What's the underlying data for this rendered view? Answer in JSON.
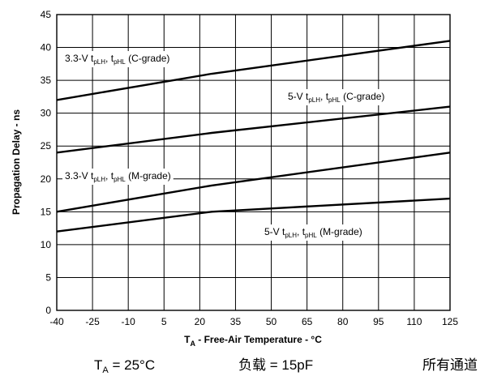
{
  "chart_data": {
    "type": "line",
    "xlabel": "T_A - Free-Air Temperature - °C",
    "xlabel_main": "T",
    "xlabel_sub": "A",
    "xlabel_rest": " - Free-Air Temperature - °C",
    "ylabel": "Propagation Delay - ns",
    "xlim": [
      -40,
      125
    ],
    "ylim": [
      0,
      45
    ],
    "x_ticks": [
      -40,
      -25,
      -10,
      5,
      20,
      35,
      50,
      65,
      80,
      95,
      110,
      125
    ],
    "y_ticks": [
      0,
      5,
      10,
      15,
      20,
      25,
      30,
      35,
      40,
      45
    ],
    "grid": true,
    "series": [
      {
        "name": "3.3-V tpLH, tpHL (C-grade)",
        "label_prefix": "3.3-V t",
        "label_sub1": "pLH",
        "label_mid": ", t",
        "label_sub2": "pHL",
        "label_suffix": " (C-grade)",
        "x": [
          -40,
          25,
          125
        ],
        "y": [
          32,
          36,
          41
        ]
      },
      {
        "name": "5-V tpLH, tpHL (C-grade)",
        "label_prefix": "5-V t",
        "label_sub1": "pLH",
        "label_mid": ", t",
        "label_sub2": "pHL",
        "label_suffix": " (C-grade)",
        "x": [
          -40,
          25,
          125
        ],
        "y": [
          24,
          27,
          31
        ]
      },
      {
        "name": "3.3-V tpLH, tpHL (M-grade)",
        "label_prefix": "3.3-V t",
        "label_sub1": "pLH",
        "label_mid": ", t",
        "label_sub2": "pHL",
        "label_suffix": " (M-grade)",
        "x": [
          -40,
          25,
          125
        ],
        "y": [
          15,
          19,
          24
        ]
      },
      {
        "name": "5-V tpLH, tpHL (M-grade)",
        "label_prefix": "5-V t",
        "label_sub1": "pLH",
        "label_mid": ", t",
        "label_sub2": "pHL",
        "label_suffix": " (M-grade)",
        "x": [
          -40,
          25,
          125
        ],
        "y": [
          12,
          15,
          17
        ]
      }
    ]
  },
  "footer": {
    "condition_main": "T",
    "condition_sub": "A",
    "condition_rest": " = 25°C",
    "load_label": "负载",
    "load_value": " = 15pF",
    "channels": "所有通道"
  }
}
